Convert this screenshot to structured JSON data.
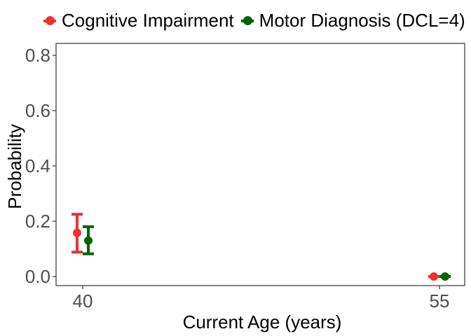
{
  "chart_data": {
    "type": "scatter",
    "subtype": "point-errorbar",
    "title": "",
    "xlabel": "Current Age (years)",
    "ylabel": "Probability",
    "x_categories": [
      "40",
      "55"
    ],
    "y_ticks": [
      "0.0",
      "0.2",
      "0.4",
      "0.6",
      "0.8"
    ],
    "ylim": [
      -0.04,
      0.84
    ],
    "grid": false,
    "legend_position": "top",
    "series": [
      {
        "name": "Cognitive Impairment",
        "color": "#f03030",
        "points": [
          {
            "x": "40",
            "y": 0.158,
            "ymin": 0.088,
            "ymax": 0.225
          },
          {
            "x": "55",
            "y": 0.0,
            "ymin": 0.0,
            "ymax": 0.0
          }
        ]
      },
      {
        "name": "Motor Diagnosis (DCL=4)",
        "color": "#006400",
        "points": [
          {
            "x": "40",
            "y": 0.13,
            "ymin": 0.082,
            "ymax": 0.18
          },
          {
            "x": "55",
            "y": 0.0,
            "ymin": 0.0,
            "ymax": 0.0
          }
        ]
      }
    ]
  }
}
